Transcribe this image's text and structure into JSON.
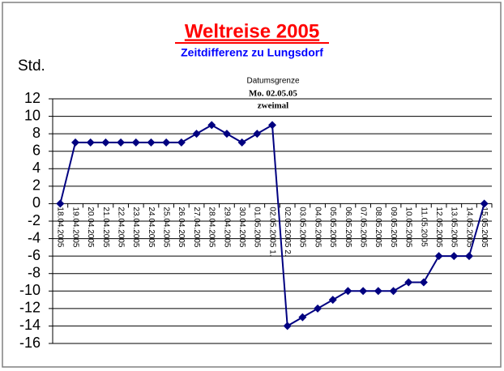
{
  "chart_data": {
    "type": "line",
    "title": "Weltreise 2005",
    "subtitle": "Zeitdifferenz zu Lungsdorf",
    "y_label": "Std.",
    "annotation": [
      "Datumsgrenze",
      "Mo. 02.05.05",
      "zweimal"
    ],
    "categories": [
      "18.04.2005",
      "19.04.2005",
      "20.04.2005",
      "21.04.2005",
      "22.04.2005",
      "23.04.2005",
      "24.04.2005",
      "25.04.2005",
      "26.04.2005",
      "27.04.2005",
      "28.04.2005",
      "29.04.2005",
      "30.04.2005",
      "01.05.2005",
      "02.05.2005 1.",
      "02.05.2005 2.",
      "03.05.2005",
      "04.05.2005",
      "05.05.2005",
      "06.05.2005",
      "07.05.2005",
      "08.05.2005",
      "09.05.2005",
      "10.05.2005",
      "11.05.2005",
      "12.05.2005",
      "13.05.2005",
      "14.05.2005",
      "15.05.2005"
    ],
    "values": [
      0,
      7,
      7,
      7,
      7,
      7,
      7,
      7,
      7,
      8,
      9,
      8,
      7,
      8,
      9,
      -14,
      -13,
      -12,
      -11,
      -10,
      -10,
      -10,
      -10,
      -9,
      -9,
      -6,
      -6,
      -6,
      0
    ],
    "color": "#000080",
    "ylim": [
      -16,
      12
    ],
    "yticks": [
      -16,
      -14,
      -12,
      -10,
      -8,
      -6,
      -4,
      -2,
      0,
      2,
      4,
      6,
      8,
      10,
      12
    ],
    "grid": true
  }
}
